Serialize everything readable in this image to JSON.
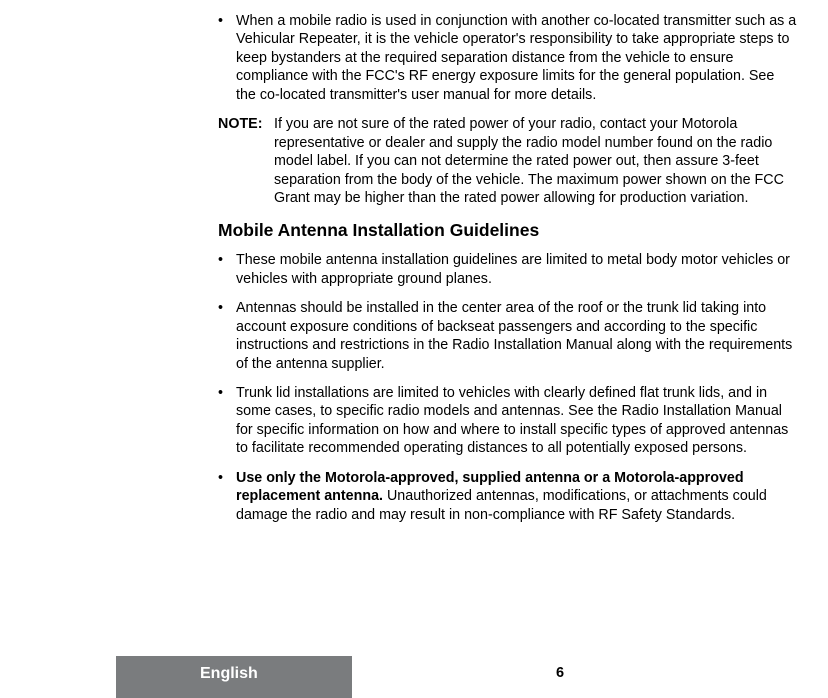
{
  "colors": {
    "text": "#000000",
    "background": "#ffffff",
    "footer_gray": "#7a7c7e",
    "footer_lang_text": "#ffffff"
  },
  "typography": {
    "body_font_size": 14.3,
    "heading_font_size": 17.5,
    "footer_lang_size": 16,
    "footer_page_size": 14.5,
    "line_height": 1.29
  },
  "body": {
    "bullet1": "When a mobile radio is used in conjunction with another co-located transmitter such as a Vehicular Repeater, it is the vehicle operator's responsibility to take appropriate steps to keep bystanders at the required separation distance from the vehicle to ensure compliance with the FCC's RF energy exposure limits for the general population. See the co-located transmitter's user manual for more details.",
    "note_label": "NOTE:",
    "note_text": "If you are not sure of the rated power of your radio, contact your Motorola representative or dealer and supply the radio model number found on the radio model label. If you can not determine the rated power out, then assure 3-feet separation from the body of the vehicle. The maximum power shown on the FCC Grant may be higher than the rated power allowing for production variation.",
    "heading": "Mobile Antenna Installation Guidelines",
    "g_bullet1": "These mobile antenna installation guidelines are limited to metal body motor vehicles or vehicles with appropriate ground planes.",
    "g_bullet2": "Antennas should be installed in the center area of the roof or the trunk lid taking into account exposure conditions of backseat passengers and according to the specific instructions and restrictions in the Radio Installation Manual along with the requirements of the antenna supplier.",
    "g_bullet3": "Trunk lid installations are limited to vehicles with clearly defined flat trunk lids, and in some cases, to specific radio models and antennas. See the Radio Installation Manual for specific information on how and where to install specific types of approved antennas to facilitate recommended operating distances to all potentially exposed persons.",
    "g_bullet4_bold": "Use only the Motorola-approved, supplied antenna or a Motorola-approved replacement antenna.",
    "g_bullet4_rest": " Unauthorized antennas, modifications, or attachments could damage the radio and may result in non-compliance with RF Safety Standards."
  },
  "footer": {
    "language": "English",
    "page_number": "6"
  }
}
